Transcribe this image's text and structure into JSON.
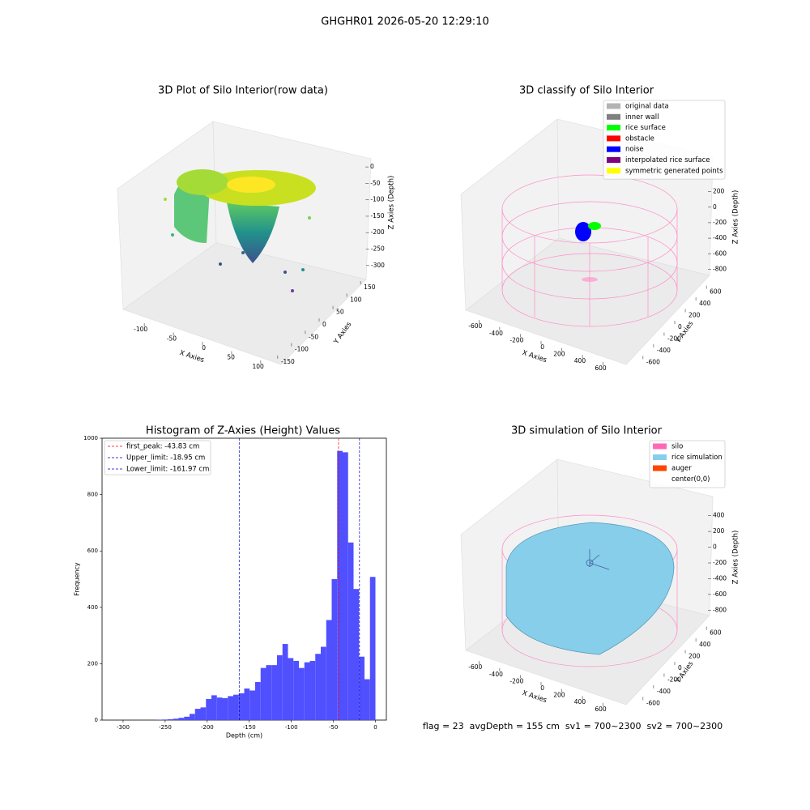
{
  "title": "GHGHR01 2026-05-20 12:29:10",
  "footer": "flag = 23  avgDepth = 155 cm  sv1 = 700~2300  sv2 = 700~2300",
  "chart_data": [
    {
      "type": "scatter3d",
      "title": "3D Plot of Silo Interior(row data)",
      "xlabel": "X Axies",
      "ylabel": "Y Axies",
      "zlabel": "Z Axies (Depth)",
      "xlim": [
        -135,
        135
      ],
      "ylim": [
        -170,
        170
      ],
      "zlim": [
        -340,
        20
      ],
      "xticks": [
        -100,
        -50,
        0,
        50,
        100
      ],
      "yticks": [
        -150,
        -100,
        -50,
        0,
        50,
        100,
        150
      ],
      "zticks": [
        -300,
        -250,
        -200,
        -150,
        -100,
        -50,
        0
      ]
    },
    {
      "type": "scatter3d",
      "title": "3D classify of Silo Interior",
      "xlabel": "X Axies",
      "ylabel": "Y Axies",
      "zlabel": "Z Axies (Depth)",
      "xlim": [
        -720,
        720
      ],
      "ylim": [
        -720,
        720
      ],
      "zlim": [
        -900,
        300
      ],
      "xticks": [
        -600,
        -400,
        -200,
        0,
        200,
        400,
        600
      ],
      "yticks": [
        -600,
        -400,
        -200,
        0,
        200,
        400,
        600
      ],
      "zticks": [
        -800,
        -600,
        -400,
        -200,
        0,
        200
      ],
      "legend_loc": "upper right",
      "legend": [
        {
          "name": "original data",
          "color": "#b3b3b3"
        },
        {
          "name": "inner wall",
          "color": "#808080"
        },
        {
          "name": "rice surface",
          "color": "#00ff00"
        },
        {
          "name": "obstacle",
          "color": "#ff0000"
        },
        {
          "name": "noise",
          "color": "#0000ff"
        },
        {
          "name": "interpolated rice surface",
          "color": "#800080"
        },
        {
          "name": "symmetric generated points",
          "color": "#ffff00"
        }
      ]
    },
    {
      "type": "histogram",
      "title": "Histogram of Z-Axies (Height) Values",
      "xlabel": "Depth (cm)",
      "ylabel": "Frequency",
      "color": "#5050ff",
      "bins": [
        -260,
        -253.5,
        -247,
        -240.5,
        -234,
        -227.5,
        -221,
        -214.5,
        -208,
        -201.5,
        -195,
        -188.5,
        -182,
        -175.5,
        -169,
        -162.5,
        -156,
        -149.5,
        -143,
        -136.5,
        -130,
        -123.5,
        -117,
        -110.5,
        -104,
        -97.5,
        -91,
        -84.5,
        -78,
        -71.5,
        -65,
        -58.5,
        -52,
        -45.5,
        -39,
        -32.5,
        -26,
        -19.5,
        -13,
        -6.5,
        0
      ],
      "counts": [
        1,
        2,
        3,
        5,
        8,
        12,
        22,
        40,
        45,
        75,
        88,
        80,
        78,
        85,
        90,
        95,
        112,
        105,
        135,
        185,
        195,
        195,
        230,
        270,
        220,
        210,
        185,
        205,
        210,
        235,
        260,
        355,
        500,
        955,
        950,
        630,
        465,
        225,
        145,
        508
      ],
      "xlim": [
        -325,
        13
      ],
      "ylim": [
        0,
        1000
      ],
      "xticks": [
        -300,
        -250,
        -200,
        -150,
        -100,
        -50,
        0
      ],
      "yticks": [
        0,
        200,
        400,
        600,
        800,
        1000
      ],
      "legend_loc": "upper left",
      "lines": [
        {
          "name": "first_peak: -43.83 cm",
          "value": -43.83,
          "color": "#ff0000"
        },
        {
          "name": "Upper_limit: -18.95 cm",
          "value": -18.95,
          "color": "#0000cc"
        },
        {
          "name": "Lower_limit: -161.97 cm",
          "value": -161.97,
          "color": "#0000cc"
        }
      ]
    },
    {
      "type": "surface3d",
      "title": "3D simulation of Silo Interior",
      "xlabel": "X Axies",
      "ylabel": "Y Axies",
      "zlabel": "Z Axies (Depth)",
      "xlim": [
        -720,
        720
      ],
      "ylim": [
        -720,
        720
      ],
      "zlim": [
        -900,
        500
      ],
      "xticks": [
        -600,
        -400,
        -200,
        0,
        200,
        400,
        600
      ],
      "yticks": [
        -600,
        -400,
        -200,
        0,
        200,
        400,
        600
      ],
      "zticks": [
        -800,
        -600,
        -400,
        -200,
        0,
        200,
        400
      ],
      "legend_loc": "upper right",
      "legend": [
        {
          "name": "silo",
          "color": "#ff69b4"
        },
        {
          "name": "rice simulation",
          "color": "#87ceeb"
        },
        {
          "name": "auger",
          "color": "#ff4500"
        },
        {
          "name": "center(0,0)",
          "color": "#ffffff"
        }
      ]
    }
  ]
}
